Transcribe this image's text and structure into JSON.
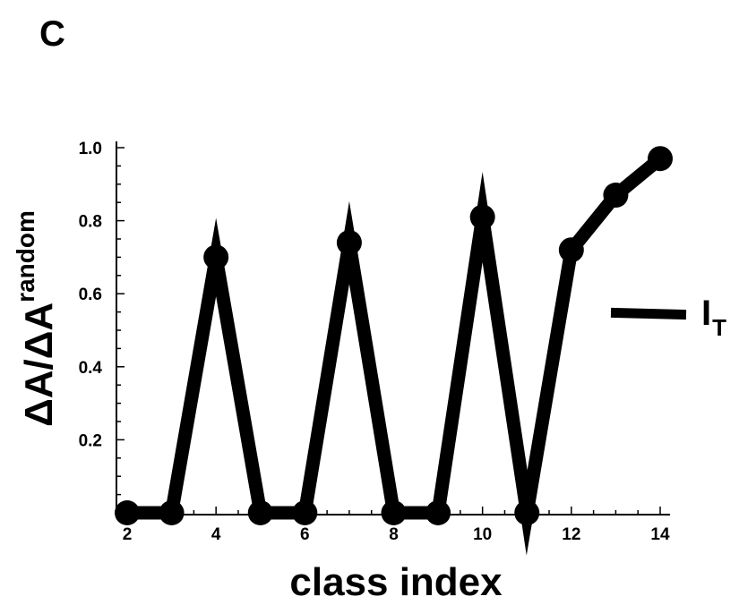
{
  "panel_label": "C",
  "chart_data": {
    "type": "line",
    "xlabel": "class index",
    "ylabel": "ΔA/ΔA",
    "ylabel_sup": "random",
    "xlim": [
      2,
      14
    ],
    "ylim": [
      0,
      1.0
    ],
    "xticks": [
      2,
      4,
      6,
      8,
      10,
      12,
      14
    ],
    "yticks": [
      0.2,
      0.4,
      0.6,
      0.8,
      1.0
    ],
    "xtick_labels": [
      "2",
      "4",
      "6",
      "8",
      "10",
      "12",
      "14"
    ],
    "ytick_labels": [
      "0.2",
      "0.4",
      "0.6",
      "0.8",
      "1.0"
    ],
    "series": [
      {
        "x": [
          2,
          3,
          4,
          5,
          6,
          7,
          8,
          9,
          10,
          11,
          12,
          13,
          14
        ],
        "y": [
          0,
          0,
          0.7,
          0,
          0,
          0.74,
          0,
          0,
          0.81,
          0,
          0.72,
          0.87,
          0.97
        ],
        "color": "#000000"
      }
    ],
    "legend": [
      {
        "label": "I",
        "sub": "T",
        "color": "#000000"
      }
    ],
    "grid": false
  }
}
